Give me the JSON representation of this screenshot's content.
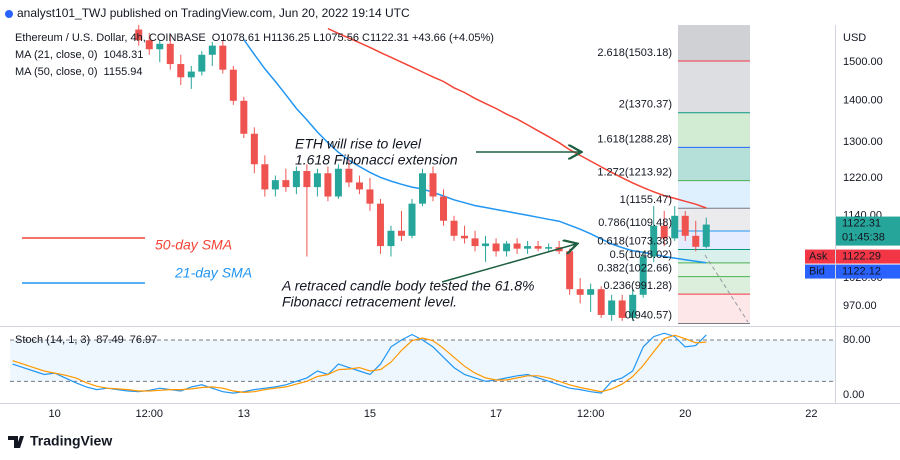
{
  "header": "analyst101_TWJ published on TradingView.com, Jun 20, 2022 19:14 UTC",
  "footer": "TradingView",
  "chart_data": [
    {
      "type": "candlestick",
      "title": "Ethereum / U.S. Dollar, 4h, COINBASE",
      "ohlc_text": "O1078.61 H1136.25 L1075.56 C1122.31 +43.66 (+4.05%)",
      "y_axis_label": "USD",
      "x": [
        32,
        36,
        40,
        44,
        48,
        52,
        56,
        60,
        64,
        68,
        72,
        76,
        80,
        84,
        88,
        92,
        96,
        100,
        104,
        108,
        112,
        116,
        120,
        124,
        128,
        132,
        136,
        140,
        144,
        148,
        152,
        156,
        160,
        164,
        168,
        172,
        176,
        180,
        184,
        188,
        192,
        196,
        200,
        204,
        208,
        212,
        216,
        220,
        224,
        228,
        232,
        236,
        240,
        244,
        248
      ],
      "open": [
        1590,
        1560,
        1535,
        1550,
        1495,
        1460,
        1475,
        1520,
        1545,
        1480,
        1400,
        1320,
        1250,
        1195,
        1215,
        1200,
        1235,
        1200,
        1230,
        1180,
        1240,
        1210,
        1195,
        1165,
        1080,
        1110,
        1100,
        1165,
        1230,
        1180,
        1130,
        1100,
        1095,
        1080,
        1085,
        1070,
        1085,
        1075,
        1080,
        1075,
        1078,
        1070,
        1000,
        990,
        1000,
        955,
        980,
        950,
        990,
        1060,
        1120,
        1095,
        1140,
        1100,
        1078.61
      ],
      "high": [
        1610,
        1580,
        1560,
        1575,
        1520,
        1490,
        1530,
        1555,
        1560,
        1490,
        1410,
        1335,
        1270,
        1225,
        1240,
        1245,
        1250,
        1240,
        1245,
        1250,
        1260,
        1225,
        1220,
        1175,
        1120,
        1150,
        1175,
        1240,
        1245,
        1195,
        1140,
        1120,
        1110,
        1100,
        1095,
        1090,
        1095,
        1090,
        1090,
        1085,
        1090,
        1075,
        1020,
        1010,
        1005,
        990,
        990,
        1000,
        1070,
        1160,
        1150,
        1160,
        1150,
        1130,
        1136.25
      ],
      "low": [
        1545,
        1520,
        1500,
        1480,
        1440,
        1430,
        1465,
        1490,
        1470,
        1390,
        1310,
        1230,
        1180,
        1180,
        1190,
        1185,
        1060,
        1180,
        1170,
        1175,
        1200,
        1185,
        1150,
        1065,
        1060,
        1090,
        1095,
        1160,
        1170,
        1120,
        1090,
        1085,
        1070,
        1050,
        1060,
        1060,
        1065,
        1065,
        1070,
        1068,
        1065,
        990,
        975,
        960,
        950,
        945,
        945,
        945,
        985,
        1050,
        1080,
        1090,
        1090,
        1070,
        1075.56
      ],
      "close": [
        1560,
        1535,
        1550,
        1495,
        1460,
        1475,
        1520,
        1545,
        1480,
        1400,
        1320,
        1250,
        1195,
        1215,
        1200,
        1235,
        1200,
        1230,
        1180,
        1240,
        1210,
        1195,
        1165,
        1080,
        1110,
        1100,
        1165,
        1230,
        1180,
        1130,
        1100,
        1095,
        1080,
        1085,
        1070,
        1085,
        1075,
        1080,
        1075,
        1078,
        1070,
        1000,
        990,
        1000,
        955,
        980,
        950,
        990,
        1060,
        1120,
        1095,
        1140,
        1100,
        1078.61,
        1122.31
      ],
      "up_color": "#26a69a",
      "down_color": "#ef5350",
      "lines": [
        {
          "name": "MA (21, close, 0)",
          "color": "#2196f3",
          "values": [
            null,
            null,
            null,
            null,
            null,
            null,
            null,
            null,
            null,
            null,
            1562,
            1521,
            1482,
            1449,
            1415,
            1381,
            1353,
            1324,
            1299,
            1277,
            1259,
            1245,
            1232,
            1221,
            1213,
            1206,
            1200,
            1196,
            1189,
            1181,
            1173,
            1167,
            1161,
            1157,
            1153,
            1149,
            1145,
            1141,
            1137,
            1133,
            1129,
            1121,
            1113,
            1104,
            1094,
            1084,
            1077,
            1071,
            1068,
            1064,
            1060,
            1057,
            1054,
            1051,
            1048.31
          ]
        },
        {
          "name": "MA (50, close, 0)",
          "color": "#f44336",
          "values": [
            null,
            null,
            null,
            null,
            null,
            null,
            null,
            null,
            null,
            null,
            null,
            null,
            null,
            null,
            null,
            null,
            null,
            null,
            1593,
            1579,
            1566,
            1553,
            1540,
            1526,
            1513,
            1500,
            1487,
            1474,
            1461,
            1449,
            1433,
            1421,
            1406,
            1393,
            1381,
            1367,
            1355,
            1341,
            1327,
            1313,
            1299,
            1283,
            1270,
            1257,
            1244,
            1232,
            1220,
            1209,
            1199,
            1190,
            1182,
            1176,
            1170,
            1164,
            1155.94
          ]
        }
      ],
      "xlim": [
        -17,
        297
      ],
      "ylim": [
        938,
        1603
      ],
      "log": true,
      "yticks": [
        {
          "value": 1500,
          "label": "1500.00"
        },
        {
          "value": 1400,
          "label": "1400.00"
        },
        {
          "value": 1300,
          "label": "1300.00"
        },
        {
          "value": 1220,
          "label": "1220.00"
        },
        {
          "value": 1140,
          "label": "1140.00"
        },
        {
          "value": 1020,
          "label": "1020.00"
        },
        {
          "value": 970,
          "label": "970.00"
        }
      ],
      "countdown": "01:45:38",
      "ask_label": "Ask",
      "ask": 1122.29,
      "bid_label": "Bid",
      "bid": 1122.12,
      "fib": {
        "top_fill": "rgba(120,123,134,0.35)",
        "levels": [
          {
            "value": 1503.18,
            "label": "2.618(1503.18)",
            "color": "#f23645",
            "fill": "rgba(120,123,134,0.25)"
          },
          {
            "value": 1370.37,
            "label": "2(1370.37)",
            "color": "#089981",
            "fill": "rgba(76,175,80,0.25)"
          },
          {
            "value": 1288.28,
            "label": "1.618(1288.28)",
            "color": "#2962ff",
            "fill": "rgba(8,153,129,0.3)"
          },
          {
            "value": 1213.92,
            "label": "1.272(1213.92)",
            "color": "#4caf50",
            "fill": "rgba(33,150,243,0.15)"
          },
          {
            "value": 1155.47,
            "label": "1(1155.47)",
            "color": "#787b86",
            "fill": "rgba(120,123,134,0.15)"
          },
          {
            "value": 1109.48,
            "label": "0.786(1109.48)",
            "color": "#2196f3",
            "fill": "rgba(41,98,255,0.12)"
          },
          {
            "value": 1073.38,
            "label": "0.618(1073.38)",
            "color": "#089981",
            "fill": "rgba(8,153,129,0.15)"
          },
          {
            "value": 1048.02,
            "label": "0.5(1048.02)",
            "color": "#4caf50",
            "fill": "rgba(76,175,80,0.15)"
          },
          {
            "value": 1022.66,
            "label": "0.382(1022.66)",
            "color": "#4caf50",
            "fill": "rgba(76,175,80,0.2)"
          },
          {
            "value": 991.28,
            "label": "0.236(991.28)",
            "color": "#f23645",
            "fill": "rgba(242,54,69,0.12)"
          },
          {
            "value": 940.57,
            "label": "0(940.57)",
            "color": "#787b86"
          }
        ]
      },
      "annotations": [
        "ETH will rise to level",
        "1.618 Fibonacci extension",
        "A retraced candle body tested the 61.8%",
        "Fibonacci retracement level.",
        "50-day SMA",
        "21-day SMA"
      ]
    },
    {
      "type": "line",
      "title": "Stoch (14, 1, 3)",
      "x": [
        -16,
        -12,
        -8,
        -4,
        0,
        4,
        8,
        12,
        16,
        20,
        24,
        28,
        32,
        36,
        40,
        44,
        48,
        52,
        56,
        60,
        64,
        68,
        72,
        76,
        80,
        84,
        88,
        92,
        96,
        100,
        104,
        108,
        112,
        116,
        120,
        124,
        128,
        132,
        136,
        140,
        144,
        148,
        152,
        156,
        160,
        164,
        168,
        172,
        176,
        180,
        184,
        188,
        192,
        196,
        200,
        204,
        208,
        212,
        216,
        220,
        224,
        228,
        232,
        236,
        240,
        244,
        248
      ],
      "series": [
        {
          "color": "#2196f3",
          "values": [
            45,
            40,
            35,
            30,
            32,
            25,
            18,
            12,
            8,
            10,
            8,
            6,
            5,
            7,
            10,
            8,
            6,
            12,
            15,
            10,
            5,
            3,
            5,
            8,
            10,
            12,
            15,
            20,
            25,
            35,
            30,
            45,
            40,
            35,
            30,
            45,
            70,
            80,
            88,
            80,
            70,
            55,
            40,
            30,
            25,
            20,
            22,
            25,
            28,
            30,
            25,
            20,
            15,
            10,
            8,
            5,
            3,
            20,
            25,
            35,
            70,
            85,
            90,
            85,
            70,
            72,
            87.49
          ]
        },
        {
          "color": "#ff9800",
          "values": [
            50,
            45,
            40,
            35,
            32,
            29,
            25,
            18,
            13,
            10,
            9,
            8,
            6,
            6,
            7,
            8,
            8,
            9,
            11,
            12,
            10,
            6,
            4,
            5,
            8,
            10,
            12,
            16,
            20,
            27,
            30,
            37,
            38,
            40,
            35,
            37,
            48,
            65,
            79,
            83,
            79,
            68,
            55,
            42,
            32,
            25,
            22,
            22,
            25,
            28,
            28,
            25,
            20,
            15,
            11,
            8,
            5,
            9,
            16,
            27,
            43,
            63,
            82,
            87,
            82,
            76,
            76.97
          ]
        }
      ],
      "band": [
        20,
        80
      ],
      "band_color": "rgba(33,150,243,0.08)",
      "xlim": [
        -17,
        297
      ],
      "xticks": [
        {
          "value": 0,
          "label": "10"
        },
        {
          "value": 36,
          "label": "12:00"
        },
        {
          "value": 72,
          "label": "13"
        },
        {
          "value": 120,
          "label": "15"
        },
        {
          "value": 168,
          "label": "17"
        },
        {
          "value": 204,
          "label": "12:00"
        },
        {
          "value": 240,
          "label": "20"
        },
        {
          "value": 288,
          "label": "22"
        }
      ],
      "ylim": [
        -10,
        97.5
      ],
      "yticks": [
        {
          "value": 80,
          "label": "80.00"
        },
        {
          "value": 0,
          "label": "0.00"
        }
      ]
    }
  ]
}
